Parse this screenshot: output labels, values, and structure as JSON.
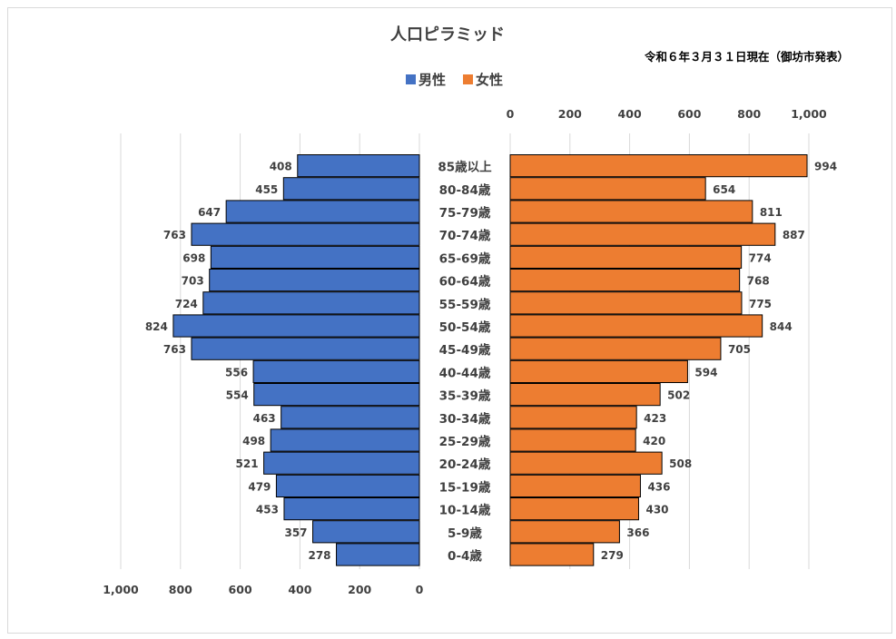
{
  "chart_data": {
    "type": "bar",
    "title": "人口ピラミッド",
    "subtitle": "令和６年３月３１日現在（御坊市発表）",
    "categories": [
      "85歳以上",
      "80-84歳",
      "75-79歳",
      "70-74歳",
      "65-69歳",
      "60-64歳",
      "55-59歳",
      "50-54歳",
      "45-49歳",
      "40-44歳",
      "35-39歳",
      "30-34歳",
      "25-29歳",
      "20-24歳",
      "15-19歳",
      "10-14歳",
      "5-9歳",
      "0-4歳"
    ],
    "series": [
      {
        "name": "男性",
        "color": "#4472c4",
        "values": [
          408,
          455,
          647,
          763,
          698,
          703,
          724,
          824,
          763,
          556,
          554,
          463,
          498,
          521,
          479,
          453,
          357,
          278
        ]
      },
      {
        "name": "女性",
        "color": "#ed7d31",
        "values": [
          994,
          654,
          811,
          887,
          774,
          768,
          775,
          844,
          705,
          594,
          502,
          423,
          420,
          508,
          436,
          430,
          366,
          279
        ]
      }
    ],
    "male_axis": {
      "ticks": [
        "1,000",
        "800",
        "600",
        "400",
        "200",
        "0"
      ],
      "range": [
        0,
        1000
      ]
    },
    "female_axis": {
      "ticks": [
        "0",
        "200",
        "400",
        "600",
        "800",
        "1,000"
      ],
      "range": [
        0,
        1000
      ]
    },
    "legend": {
      "position": "top",
      "items": [
        "男性",
        "女性"
      ]
    },
    "grid": true
  }
}
